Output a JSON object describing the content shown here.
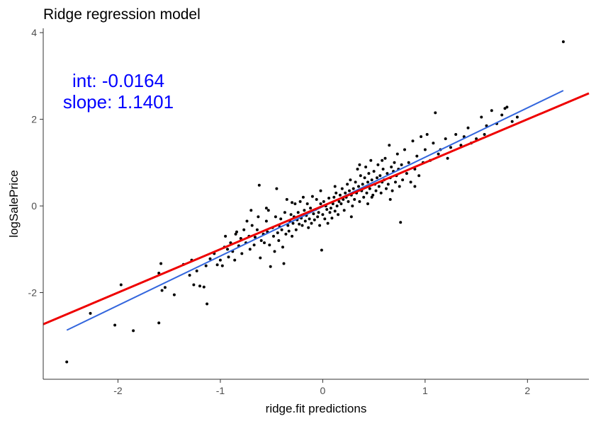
{
  "chart_data": {
    "type": "scatter",
    "title": "Ridge regression model",
    "xlabel": "ridge.fit predictions",
    "ylabel": "logSalePrice",
    "xlim": [
      -2.73,
      2.6
    ],
    "ylim": [
      -4.0,
      4.1
    ],
    "x_ticks": [
      {
        "value": -2,
        "label": "-2"
      },
      {
        "value": -1,
        "label": "-1"
      },
      {
        "value": 0,
        "label": "0"
      },
      {
        "value": 1,
        "label": "1"
      },
      {
        "value": 2,
        "label": "2"
      }
    ],
    "y_ticks": [
      {
        "value": -2,
        "label": "-2"
      },
      {
        "value": 0,
        "label": "0"
      },
      {
        "value": 2,
        "label": "2"
      },
      {
        "value": 4,
        "label": "4"
      }
    ],
    "grid": false,
    "annotation": {
      "lines": [
        "int: -0.0164",
        "slope: 1.1401"
      ],
      "color": "#0000ff"
    },
    "fit_lines": [
      {
        "kind": "reference",
        "color": "#ee0000",
        "intercept": 0,
        "slope": 1
      },
      {
        "kind": "fit",
        "color": "#3366dd",
        "x_range": [
          -2.5,
          2.35
        ],
        "intercept": -0.0164,
        "slope": 1.1401
      }
    ],
    "points_color": "#000000",
    "points": [
      [
        -2.5,
        -3.6
      ],
      [
        2.35,
        3.79
      ],
      [
        -2.03,
        -2.75
      ],
      [
        -1.97,
        -1.82
      ],
      [
        -1.85,
        -2.88
      ],
      [
        -2.27,
        -2.48
      ],
      [
        -1.6,
        -2.7
      ],
      [
        -1.6,
        -1.55
      ],
      [
        -1.58,
        -1.33
      ],
      [
        -1.57,
        -1.95
      ],
      [
        -1.54,
        -1.88
      ],
      [
        -1.45,
        -2.05
      ],
      [
        -1.36,
        -1.35
      ],
      [
        -1.3,
        -1.6
      ],
      [
        -1.28,
        -1.25
      ],
      [
        -1.26,
        -1.82
      ],
      [
        -1.23,
        -1.5
      ],
      [
        -1.2,
        -1.85
      ],
      [
        -1.16,
        -1.87
      ],
      [
        -1.14,
        -1.38
      ],
      [
        -1.13,
        -2.26
      ],
      [
        -1.1,
        -1.22
      ],
      [
        -1.06,
        -1.1
      ],
      [
        -1.03,
        -1.36
      ],
      [
        -1.0,
        -1.25
      ],
      [
        -0.98,
        -1.38
      ],
      [
        -0.96,
        -0.95
      ],
      [
        -0.95,
        -0.7
      ],
      [
        -0.93,
        -1.0
      ],
      [
        -0.92,
        -1.18
      ],
      [
        -0.9,
        -0.85
      ],
      [
        -0.88,
        -1.05
      ],
      [
        -0.86,
        -1.25
      ],
      [
        -0.84,
        -0.6
      ],
      [
        -0.82,
        -0.92
      ],
      [
        -0.8,
        -0.75
      ],
      [
        -0.79,
        -1.1
      ],
      [
        -0.77,
        -0.55
      ],
      [
        -0.75,
        -0.85
      ],
      [
        -0.74,
        -0.35
      ],
      [
        -0.72,
        -0.7
      ],
      [
        -0.71,
        -1.0
      ],
      [
        -0.69,
        -0.45
      ],
      [
        -0.67,
        -0.9
      ],
      [
        -0.66,
        -0.72
      ],
      [
        -0.64,
        -0.55
      ],
      [
        -0.63,
        -0.25
      ],
      [
        -0.62,
        0.48
      ],
      [
        -0.61,
        -1.2
      ],
      [
        -0.6,
        -0.8
      ],
      [
        -0.58,
        -0.65
      ],
      [
        -0.57,
        -0.85
      ],
      [
        -0.55,
        -0.35
      ],
      [
        -0.54,
        -0.6
      ],
      [
        -0.53,
        -0.1
      ],
      [
        -0.52,
        -0.9
      ],
      [
        -0.51,
        -1.4
      ],
      [
        -0.49,
        -0.5
      ],
      [
        -0.48,
        -0.7
      ],
      [
        -0.47,
        -1.05
      ],
      [
        -0.46,
        -0.25
      ],
      [
        -0.45,
        0.4
      ],
      [
        -0.44,
        -0.62
      ],
      [
        -0.43,
        -0.8
      ],
      [
        -0.42,
        -0.48
      ],
      [
        -0.41,
        -0.3
      ],
      [
        -0.4,
        -0.55
      ],
      [
        -0.39,
        -0.95
      ],
      [
        -0.38,
        -1.33
      ],
      [
        -0.37,
        -0.15
      ],
      [
        -0.36,
        -0.65
      ],
      [
        -0.35,
        0.15
      ],
      [
        -0.34,
        -0.45
      ],
      [
        -0.33,
        -0.58
      ],
      [
        -0.32,
        -0.35
      ],
      [
        -0.31,
        -0.2
      ],
      [
        -0.3,
        -0.7
      ],
      [
        -0.29,
        -0.4
      ],
      [
        -0.28,
        -0.25
      ],
      [
        -0.27,
        0.05
      ],
      [
        -0.26,
        -0.55
      ],
      [
        -0.25,
        -0.32
      ],
      [
        -0.24,
        -0.15
      ],
      [
        -0.23,
        -0.42
      ],
      [
        -0.22,
        0.1
      ],
      [
        -0.21,
        -0.28
      ],
      [
        -0.2,
        -0.45
      ],
      [
        -0.19,
        0.2
      ],
      [
        -0.18,
        -0.1
      ],
      [
        -0.17,
        -0.35
      ],
      [
        -0.16,
        -0.22
      ],
      [
        -0.15,
        0.05
      ],
      [
        -0.14,
        -0.5
      ],
      [
        -0.13,
        -0.3
      ],
      [
        -0.12,
        -0.05
      ],
      [
        -0.11,
        -0.4
      ],
      [
        -0.1,
        0.22
      ],
      [
        -0.09,
        -0.18
      ],
      [
        -0.08,
        -0.32
      ],
      [
        -0.07,
        -0.08
      ],
      [
        -0.06,
        0.15
      ],
      [
        -0.05,
        -0.25
      ],
      [
        -0.04,
        -0.15
      ],
      [
        -0.03,
        -0.45
      ],
      [
        -0.02,
        0.05
      ],
      [
        -0.01,
        -1.02
      ],
      [
        0.0,
        -0.2
      ],
      [
        0.01,
        0.1
      ],
      [
        0.02,
        -0.3
      ],
      [
        0.03,
        0.0
      ],
      [
        0.04,
        -0.08
      ],
      [
        0.05,
        -0.4
      ],
      [
        0.06,
        0.18
      ],
      [
        0.07,
        -0.15
      ],
      [
        0.08,
        -0.05
      ],
      [
        0.09,
        -0.28
      ],
      [
        0.1,
        0.05
      ],
      [
        0.11,
        0.2
      ],
      [
        0.12,
        -0.12
      ],
      [
        0.13,
        0.3
      ],
      [
        0.14,
        0.0
      ],
      [
        0.15,
        -0.2
      ],
      [
        0.16,
        0.1
      ],
      [
        0.17,
        0.25
      ],
      [
        0.18,
        0.05
      ],
      [
        0.19,
        0.4
      ],
      [
        0.2,
        0.15
      ],
      [
        0.21,
        -0.1
      ],
      [
        0.22,
        0.3
      ],
      [
        0.23,
        0.2
      ],
      [
        0.24,
        0.5
      ],
      [
        0.25,
        0.1
      ],
      [
        0.26,
        0.35
      ],
      [
        0.27,
        0.6
      ],
      [
        0.28,
        0.25
      ],
      [
        0.29,
        0.0
      ],
      [
        0.3,
        0.4
      ],
      [
        0.31,
        0.15
      ],
      [
        0.32,
        0.55
      ],
      [
        0.33,
        0.3
      ],
      [
        0.34,
        0.85
      ],
      [
        0.35,
        0.45
      ],
      [
        0.36,
        0.1
      ],
      [
        0.37,
        0.7
      ],
      [
        0.38,
        0.35
      ],
      [
        0.39,
        0.5
      ],
      [
        0.4,
        0.2
      ],
      [
        0.41,
        0.65
      ],
      [
        0.42,
        0.9
      ],
      [
        0.43,
        0.3
      ],
      [
        0.44,
        0.55
      ],
      [
        0.45,
        0.75
      ],
      [
        0.46,
        0.4
      ],
      [
        0.47,
        1.05
      ],
      [
        0.48,
        0.6
      ],
      [
        0.49,
        0.25
      ],
      [
        0.5,
        0.8
      ],
      [
        0.51,
        0.5
      ],
      [
        0.52,
        0.35
      ],
      [
        0.53,
        0.65
      ],
      [
        0.54,
        0.95
      ],
      [
        0.55,
        0.45
      ],
      [
        0.56,
        0.7
      ],
      [
        0.57,
        0.3
      ],
      [
        0.58,
        0.55
      ],
      [
        0.59,
        0.85
      ],
      [
        0.6,
        0.6
      ],
      [
        0.61,
        1.1
      ],
      [
        0.62,
        0.4
      ],
      [
        0.63,
        0.75
      ],
      [
        0.64,
        0.5
      ],
      [
        0.65,
        1.4
      ],
      [
        0.66,
        0.65
      ],
      [
        0.67,
        0.9
      ],
      [
        0.68,
        0.35
      ],
      [
        0.69,
        0.8
      ],
      [
        0.7,
        1.0
      ],
      [
        0.71,
        0.55
      ],
      [
        0.72,
        0.7
      ],
      [
        0.73,
        1.2
      ],
      [
        0.74,
        0.85
      ],
      [
        0.75,
        0.45
      ],
      [
        0.76,
        -0.38
      ],
      [
        0.77,
        0.95
      ],
      [
        0.78,
        0.6
      ],
      [
        0.8,
        1.3
      ],
      [
        0.82,
        0.75
      ],
      [
        0.84,
        1.0
      ],
      [
        0.86,
        0.55
      ],
      [
        0.88,
        1.5
      ],
      [
        0.9,
        0.85
      ],
      [
        0.92,
        1.15
      ],
      [
        0.94,
        0.7
      ],
      [
        0.96,
        1.6
      ],
      [
        0.98,
        1.0
      ],
      [
        1.0,
        1.3
      ],
      [
        1.02,
        1.65
      ],
      [
        1.05,
        1.05
      ],
      [
        1.08,
        1.45
      ],
      [
        1.1,
        2.15
      ],
      [
        1.13,
        1.2
      ],
      [
        1.2,
        1.55
      ],
      [
        1.25,
        1.35
      ],
      [
        1.3,
        1.65
      ],
      [
        1.35,
        1.4
      ],
      [
        1.38,
        1.6
      ],
      [
        1.42,
        1.8
      ],
      [
        1.45,
        1.45
      ],
      [
        1.5,
        1.55
      ],
      [
        1.55,
        2.05
      ],
      [
        1.58,
        1.65
      ],
      [
        1.6,
        1.85
      ],
      [
        1.65,
        2.2
      ],
      [
        1.7,
        1.9
      ],
      [
        1.75,
        2.1
      ],
      [
        1.78,
        2.25
      ],
      [
        1.8,
        2.28
      ],
      [
        1.85,
        1.95
      ],
      [
        1.9,
        2.05
      ],
      [
        -0.02,
        0.35
      ],
      [
        0.12,
        0.45
      ],
      [
        -0.3,
        0.08
      ],
      [
        0.48,
        0.2
      ],
      [
        0.66,
        0.15
      ],
      [
        0.9,
        0.45
      ],
      [
        0.28,
        -0.25
      ],
      [
        -0.7,
        -0.1
      ],
      [
        -0.85,
        -0.65
      ],
      [
        -0.55,
        -0.05
      ],
      [
        0.36,
        0.95
      ],
      [
        0.58,
        1.05
      ],
      [
        0.44,
        0.05
      ],
      [
        1.15,
        1.3
      ],
      [
        1.22,
        1.1
      ]
    ]
  }
}
